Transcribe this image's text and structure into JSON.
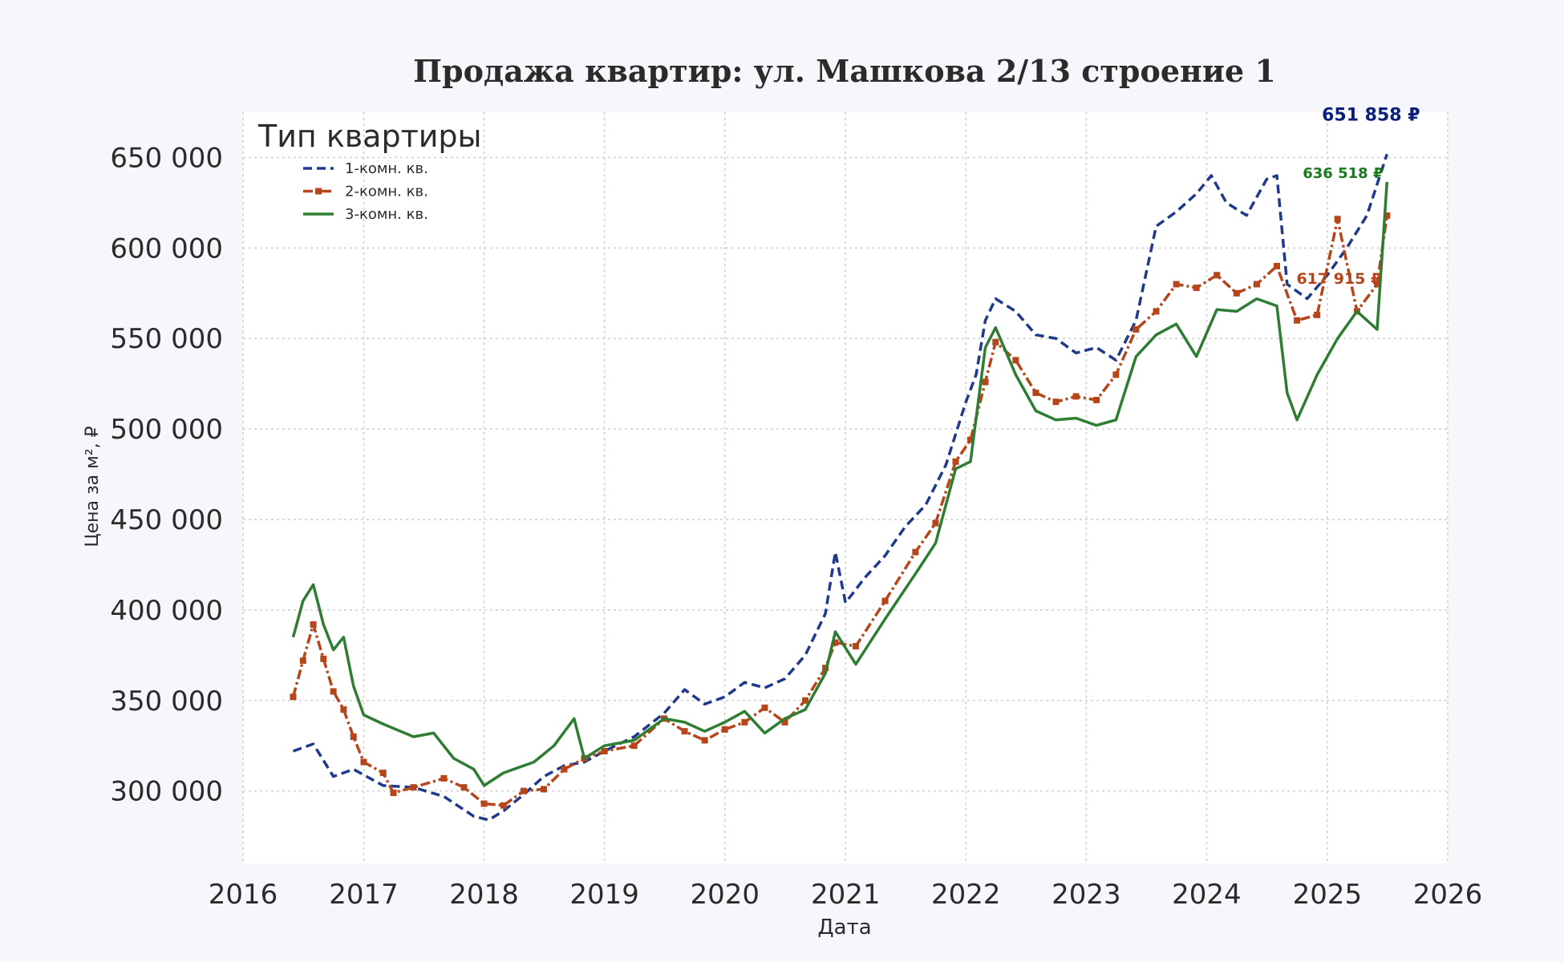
{
  "chart_data": {
    "type": "line",
    "title": "Продажа квартир: ул. Машкова 2/13 строение 1",
    "xlabel": "Дата",
    "ylabel": "Цена за м², ₽",
    "xlim": [
      "2016-01-01",
      "2026-01-01"
    ],
    "ylim": [
      260000,
      675000
    ],
    "x_ticks": [
      "2016",
      "2017",
      "2018",
      "2019",
      "2020",
      "2021",
      "2022",
      "2023",
      "2024",
      "2025",
      "2026"
    ],
    "y_ticks": [
      300000,
      350000,
      400000,
      450000,
      500000,
      550000,
      600000,
      650000
    ],
    "y_tick_labels": [
      "300 000",
      "350 000",
      "400 000",
      "450 000",
      "500 000",
      "550 000",
      "600 000",
      "650 000"
    ],
    "grid": true,
    "legend_title": "Тип квартиры",
    "legend_position": "top-left",
    "series": [
      {
        "name": "1-комн. кв.",
        "color": "#1f3a8a",
        "style": "dashed",
        "end_label": "651 858 ₽",
        "end_label_color": "#0b1f7a",
        "points": [
          [
            "2016-06-01",
            322000
          ],
          [
            "2016-08-01",
            326000
          ],
          [
            "2016-10-01",
            308000
          ],
          [
            "2016-12-01",
            312000
          ],
          [
            "2017-03-01",
            303000
          ],
          [
            "2017-06-01",
            302000
          ],
          [
            "2017-09-01",
            297000
          ],
          [
            "2017-12-01",
            286000
          ],
          [
            "2018-01-15",
            284000
          ],
          [
            "2018-03-01",
            289000
          ],
          [
            "2018-05-01",
            298000
          ],
          [
            "2018-07-01",
            308000
          ],
          [
            "2018-09-01",
            314000
          ],
          [
            "2018-11-01",
            316000
          ],
          [
            "2019-01-01",
            322000
          ],
          [
            "2019-04-01",
            330000
          ],
          [
            "2019-07-01",
            343000
          ],
          [
            "2019-09-01",
            356000
          ],
          [
            "2019-11-01",
            348000
          ],
          [
            "2020-01-01",
            352000
          ],
          [
            "2020-03-01",
            360000
          ],
          [
            "2020-05-01",
            357000
          ],
          [
            "2020-07-01",
            362000
          ],
          [
            "2020-09-01",
            375000
          ],
          [
            "2020-11-01",
            398000
          ],
          [
            "2020-12-01",
            432000
          ],
          [
            "2021-01-01",
            404000
          ],
          [
            "2021-03-01",
            418000
          ],
          [
            "2021-05-01",
            430000
          ],
          [
            "2021-07-01",
            446000
          ],
          [
            "2021-09-01",
            458000
          ],
          [
            "2021-11-01",
            480000
          ],
          [
            "2022-01-01",
            515000
          ],
          [
            "2022-02-01",
            530000
          ],
          [
            "2022-03-01",
            560000
          ],
          [
            "2022-04-01",
            572000
          ],
          [
            "2022-06-01",
            565000
          ],
          [
            "2022-08-01",
            552000
          ],
          [
            "2022-10-01",
            550000
          ],
          [
            "2022-12-01",
            542000
          ],
          [
            "2023-02-01",
            545000
          ],
          [
            "2023-04-01",
            538000
          ],
          [
            "2023-06-01",
            560000
          ],
          [
            "2023-08-01",
            612000
          ],
          [
            "2023-10-01",
            620000
          ],
          [
            "2023-12-01",
            630000
          ],
          [
            "2024-01-15",
            640000
          ],
          [
            "2024-03-01",
            625000
          ],
          [
            "2024-05-01",
            618000
          ],
          [
            "2024-07-01",
            638000
          ],
          [
            "2024-08-01",
            640000
          ],
          [
            "2024-09-01",
            580000
          ],
          [
            "2024-11-01",
            572000
          ],
          [
            "2025-01-01",
            585000
          ],
          [
            "2025-03-01",
            600000
          ],
          [
            "2025-05-01",
            618000
          ],
          [
            "2025-07-01",
            651858
          ]
        ]
      },
      {
        "name": "2-комн. кв.",
        "color": "#b5461b",
        "style": "dashdot-marker",
        "end_label": "617 915 ₽",
        "end_label_color": "#b5461b",
        "points": [
          [
            "2016-06-01",
            352000
          ],
          [
            "2016-07-01",
            372000
          ],
          [
            "2016-08-01",
            392000
          ],
          [
            "2016-09-01",
            373000
          ],
          [
            "2016-10-01",
            355000
          ],
          [
            "2016-11-01",
            345000
          ],
          [
            "2016-12-01",
            330000
          ],
          [
            "2017-01-01",
            316000
          ],
          [
            "2017-03-01",
            310000
          ],
          [
            "2017-04-01",
            299000
          ],
          [
            "2017-06-01",
            302000
          ],
          [
            "2017-09-01",
            307000
          ],
          [
            "2017-11-01",
            302000
          ],
          [
            "2018-01-01",
            293000
          ],
          [
            "2018-03-01",
            292000
          ],
          [
            "2018-05-01",
            300000
          ],
          [
            "2018-07-01",
            301000
          ],
          [
            "2018-09-01",
            312000
          ],
          [
            "2018-11-01",
            318000
          ],
          [
            "2019-01-01",
            322000
          ],
          [
            "2019-04-01",
            325000
          ],
          [
            "2019-07-01",
            340000
          ],
          [
            "2019-09-01",
            333000
          ],
          [
            "2019-11-01",
            328000
          ],
          [
            "2020-01-01",
            334000
          ],
          [
            "2020-03-01",
            338000
          ],
          [
            "2020-05-01",
            346000
          ],
          [
            "2020-07-01",
            338000
          ],
          [
            "2020-09-01",
            350000
          ],
          [
            "2020-11-01",
            368000
          ],
          [
            "2020-12-01",
            382000
          ],
          [
            "2021-02-01",
            380000
          ],
          [
            "2021-05-01",
            405000
          ],
          [
            "2021-08-01",
            432000
          ],
          [
            "2021-10-01",
            448000
          ],
          [
            "2021-12-01",
            482000
          ],
          [
            "2022-01-15",
            494000
          ],
          [
            "2022-03-01",
            526000
          ],
          [
            "2022-04-01",
            548000
          ],
          [
            "2022-06-01",
            538000
          ],
          [
            "2022-08-01",
            520000
          ],
          [
            "2022-10-01",
            515000
          ],
          [
            "2022-12-01",
            518000
          ],
          [
            "2023-02-01",
            516000
          ],
          [
            "2023-04-01",
            530000
          ],
          [
            "2023-06-01",
            555000
          ],
          [
            "2023-08-01",
            565000
          ],
          [
            "2023-10-01",
            580000
          ],
          [
            "2023-12-01",
            578000
          ],
          [
            "2024-02-01",
            585000
          ],
          [
            "2024-04-01",
            575000
          ],
          [
            "2024-06-01",
            580000
          ],
          [
            "2024-08-01",
            590000
          ],
          [
            "2024-10-01",
            560000
          ],
          [
            "2024-12-01",
            563000
          ],
          [
            "2025-02-01",
            616000
          ],
          [
            "2025-04-01",
            565000
          ],
          [
            "2025-06-01",
            580000
          ],
          [
            "2025-07-01",
            617915
          ]
        ]
      },
      {
        "name": "3-комн. кв.",
        "color": "#2e7d32",
        "style": "solid",
        "end_label": "636 518 ₽",
        "end_label_color": "#1b7a1f",
        "points": [
          [
            "2016-06-01",
            385000
          ],
          [
            "2016-07-01",
            405000
          ],
          [
            "2016-08-01",
            414000
          ],
          [
            "2016-09-01",
            392000
          ],
          [
            "2016-10-01",
            378000
          ],
          [
            "2016-11-01",
            385000
          ],
          [
            "2016-12-01",
            358000
          ],
          [
            "2017-01-01",
            342000
          ],
          [
            "2017-03-01",
            337000
          ],
          [
            "2017-06-01",
            330000
          ],
          [
            "2017-08-01",
            332000
          ],
          [
            "2017-10-01",
            318000
          ],
          [
            "2017-12-01",
            312000
          ],
          [
            "2018-01-01",
            303000
          ],
          [
            "2018-03-01",
            310000
          ],
          [
            "2018-06-01",
            316000
          ],
          [
            "2018-08-01",
            325000
          ],
          [
            "2018-10-01",
            340000
          ],
          [
            "2018-11-01",
            318000
          ],
          [
            "2019-01-01",
            325000
          ],
          [
            "2019-04-01",
            328000
          ],
          [
            "2019-07-01",
            340000
          ],
          [
            "2019-09-01",
            338000
          ],
          [
            "2019-11-01",
            333000
          ],
          [
            "2020-01-01",
            338000
          ],
          [
            "2020-03-01",
            344000
          ],
          [
            "2020-05-01",
            332000
          ],
          [
            "2020-07-01",
            340000
          ],
          [
            "2020-09-01",
            345000
          ],
          [
            "2020-11-01",
            365000
          ],
          [
            "2020-12-01",
            388000
          ],
          [
            "2021-02-01",
            370000
          ],
          [
            "2021-05-01",
            395000
          ],
          [
            "2021-08-01",
            420000
          ],
          [
            "2021-10-01",
            437000
          ],
          [
            "2021-12-01",
            478000
          ],
          [
            "2022-01-15",
            482000
          ],
          [
            "2022-03-01",
            545000
          ],
          [
            "2022-04-01",
            556000
          ],
          [
            "2022-06-01",
            530000
          ],
          [
            "2022-08-01",
            510000
          ],
          [
            "2022-10-01",
            505000
          ],
          [
            "2022-12-01",
            506000
          ],
          [
            "2023-02-01",
            502000
          ],
          [
            "2023-04-01",
            505000
          ],
          [
            "2023-06-01",
            540000
          ],
          [
            "2023-08-01",
            552000
          ],
          [
            "2023-10-01",
            558000
          ],
          [
            "2023-12-01",
            540000
          ],
          [
            "2024-02-01",
            566000
          ],
          [
            "2024-04-01",
            565000
          ],
          [
            "2024-06-01",
            572000
          ],
          [
            "2024-08-01",
            568000
          ],
          [
            "2024-09-01",
            520000
          ],
          [
            "2024-10-01",
            505000
          ],
          [
            "2024-12-01",
            530000
          ],
          [
            "2025-02-01",
            550000
          ],
          [
            "2025-04-01",
            565000
          ],
          [
            "2025-06-01",
            555000
          ],
          [
            "2025-07-01",
            636518
          ]
        ]
      }
    ]
  }
}
